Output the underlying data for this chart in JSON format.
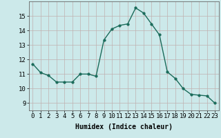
{
  "x": [
    0,
    1,
    2,
    3,
    4,
    5,
    6,
    7,
    8,
    9,
    10,
    11,
    12,
    13,
    14,
    15,
    16,
    17,
    18,
    19,
    20,
    21,
    22,
    23
  ],
  "y": [
    11.7,
    11.1,
    10.9,
    10.45,
    10.45,
    10.45,
    11.0,
    11.0,
    10.85,
    13.35,
    14.1,
    14.35,
    14.45,
    15.55,
    15.2,
    14.45,
    13.7,
    11.15,
    10.7,
    10.0,
    9.6,
    9.55,
    9.5,
    9.0
  ],
  "line_color": "#1a6b5a",
  "marker": "o",
  "markersize": 2.5,
  "linewidth": 1.0,
  "bg_color": "#cce9ea",
  "grid_color": "#c0b0b0",
  "xlabel": "Humidex (Indice chaleur)",
  "ylim": [
    8.5,
    16.0
  ],
  "xlim": [
    -0.5,
    23.5
  ],
  "yticks": [
    9,
    10,
    11,
    12,
    13,
    14,
    15
  ],
  "xticks": [
    0,
    1,
    2,
    3,
    4,
    5,
    6,
    7,
    8,
    9,
    10,
    11,
    12,
    13,
    14,
    15,
    16,
    17,
    18,
    19,
    20,
    21,
    22,
    23
  ],
  "xlabel_fontsize": 7,
  "tick_fontsize": 6.5
}
